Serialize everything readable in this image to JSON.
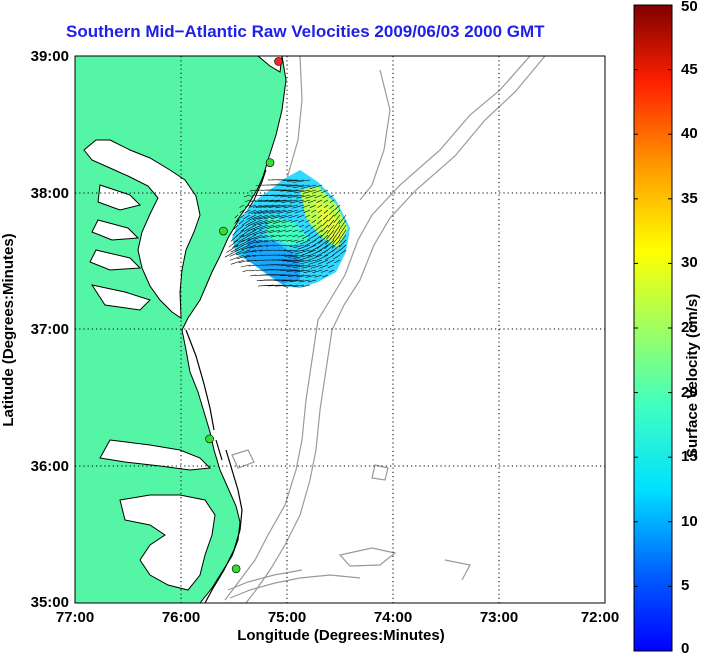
{
  "title": "Southern Mid−Atlantic Raw Velocities 2009/06/03 2000 GMT",
  "xlabel": "Longitude (Degrees:Minutes)",
  "ylabel": "Latitude (Degrees:Minutes)",
  "x_ticks": [
    "77:00",
    "76:00",
    "75:00",
    "74:00",
    "73:00",
    "72:00"
  ],
  "y_ticks": [
    "39:00",
    "38:00",
    "37:00",
    "36:00",
    "35:00"
  ],
  "colorbar": {
    "label": "Surface Velocity (cm/s)",
    "ticks": [
      "0",
      "5",
      "10",
      "15",
      "20",
      "25",
      "30",
      "35",
      "40",
      "45",
      "50"
    ],
    "range": [
      0,
      50
    ],
    "colormap": "jet"
  },
  "colors": {
    "land": "#55f5a6",
    "coast": "#000000",
    "bathymetry": "#9a9a9a",
    "title": "#1f1fe8"
  },
  "map_extent": {
    "lon": [
      -77,
      -72
    ],
    "lat": [
      35,
      39
    ]
  },
  "stations": [
    {
      "lon": -75.08,
      "lat": 38.96,
      "color": "#ff2020"
    },
    {
      "lon": -75.16,
      "lat": 38.22,
      "color": "#33dd33"
    },
    {
      "lon": -75.6,
      "lat": 37.72,
      "color": "#33dd33"
    },
    {
      "lon": -75.73,
      "lat": 36.2,
      "color": "#33dd33"
    },
    {
      "lon": -75.48,
      "lat": 35.25,
      "color": "#33dd33"
    }
  ],
  "velocity_field": {
    "region": "offshore Delmarva / Virginia shelf",
    "speed_range_cm_s": [
      5,
      25
    ],
    "dominant_direction": "southwestward"
  }
}
